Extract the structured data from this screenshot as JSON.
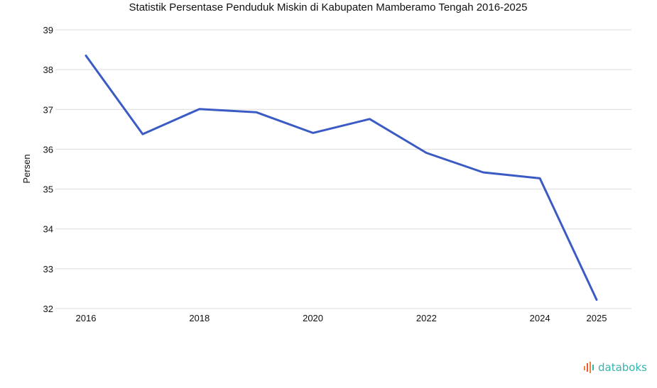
{
  "chart_data": {
    "type": "line",
    "title": "Statistik Persentase Penduduk Miskin di Kabupaten Mamberamo Tengah 2016-2025",
    "xlabel": "",
    "ylabel": "Persen",
    "x": [
      2016,
      2017,
      2018,
      2019,
      2020,
      2021,
      2022,
      2023,
      2024,
      2025
    ],
    "series": [
      {
        "values": [
          38.35,
          36.38,
          37.01,
          36.93,
          36.41,
          36.76,
          35.91,
          35.42,
          35.27,
          32.22
        ]
      }
    ],
    "x_tick_labels": [
      "2016",
      "2018",
      "2020",
      "2022",
      "2024",
      "2025"
    ],
    "y_ticks": [
      32,
      33,
      34,
      35,
      36,
      37,
      38,
      39
    ],
    "ylim": [
      32,
      39
    ],
    "grid": true,
    "legend": "none",
    "colors": {
      "series": "#3b5bc4",
      "grid": "#dcdcdc"
    }
  },
  "brand": {
    "name": "databoks",
    "icon": "databoks-logo-icon",
    "color": "#39b3ad"
  }
}
